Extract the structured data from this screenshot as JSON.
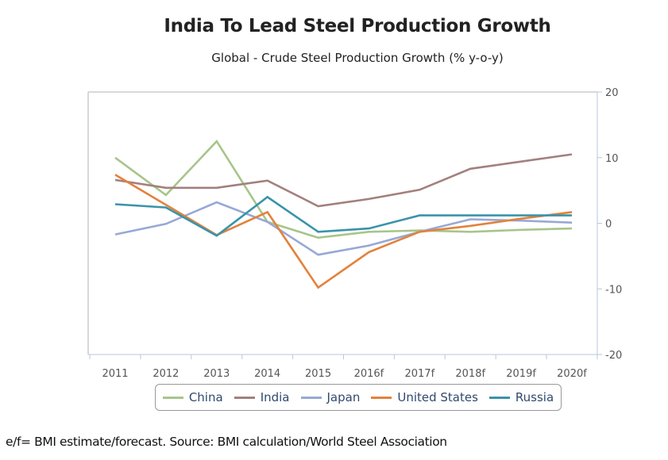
{
  "chart_data": {
    "type": "line",
    "title": "India To Lead Steel Production Growth",
    "subtitle": "Global - Crude Steel Production Growth (% y-o-y)",
    "xlabel": "",
    "ylabel": "",
    "categories": [
      "2011",
      "2012",
      "2013",
      "2014",
      "2015",
      "2016f",
      "2017f",
      "2018f",
      "2019f",
      "2020f"
    ],
    "ylim": [
      -20,
      20
    ],
    "yticks": [
      20,
      10,
      0,
      -10,
      -20
    ],
    "ytick_labels": [
      "20",
      "10",
      "0",
      "-10",
      "-20"
    ],
    "y_axis_side": "right",
    "grid": false,
    "legend_position": "bottom",
    "series": [
      {
        "name": "China",
        "color": "#a7c58a",
        "values": [
          10.0,
          4.3,
          12.5,
          0.2,
          -2.2,
          -1.3,
          -1.1,
          -1.3,
          -1.0,
          -0.8
        ]
      },
      {
        "name": "India",
        "color": "#a3807e",
        "values": [
          6.6,
          5.4,
          5.4,
          6.5,
          2.6,
          3.7,
          5.1,
          8.3,
          9.4,
          10.5
        ]
      },
      {
        "name": "Japan",
        "color": "#98a8d6",
        "values": [
          -1.7,
          -0.1,
          3.2,
          0.2,
          -4.8,
          -3.4,
          -1.3,
          0.6,
          0.4,
          0.1
        ]
      },
      {
        "name": "United States",
        "color": "#e2823c",
        "values": [
          7.4,
          2.8,
          -1.8,
          1.7,
          -9.8,
          -4.4,
          -1.3,
          -0.4,
          0.7,
          1.7
        ]
      },
      {
        "name": "Russia",
        "color": "#3a93aa",
        "values": [
          2.9,
          2.4,
          -1.9,
          4.0,
          -1.3,
          -0.8,
          1.2,
          1.2,
          1.2,
          1.2
        ]
      }
    ],
    "footnote": "e/f= BMI estimate/forecast. Source: BMI calculation/World Steel Association"
  }
}
